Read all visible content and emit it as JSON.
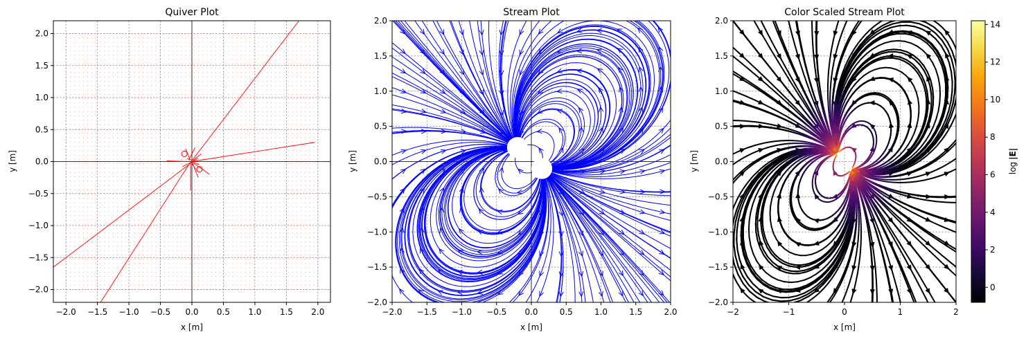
{
  "chart_data": [
    {
      "type": "quiver",
      "title": "Quiver Plot",
      "xlabel": "x [m]",
      "ylabel": "y [m]",
      "xlim": [
        -2.2,
        2.2
      ],
      "ylim": [
        -2.2,
        2.2
      ],
      "xticks": [
        "-2.0",
        "-1.5",
        "-1.0",
        "-0.5",
        "0.0",
        "0.5",
        "1.0",
        "1.5",
        "2.0"
      ],
      "yticks": [
        "-2.0",
        "-1.5",
        "-1.0",
        "-0.5",
        "0.0",
        "0.5",
        "1.0",
        "1.5",
        "2.0"
      ],
      "grid": true,
      "color": "#ff0000",
      "sources": [
        {
          "x": -0.12,
          "y": 0.12,
          "charge": "negative"
        },
        {
          "x": 0.12,
          "y": -0.12,
          "charge": "positive"
        }
      ],
      "grid_range": [
        -2.0,
        2.0
      ],
      "large_arrows": [
        {
          "x0": -0.05,
          "y0": -0.05,
          "x1": 1.7,
          "y1": 2.2
        },
        {
          "x0": -0.05,
          "y0": -0.05,
          "x1": -2.2,
          "y1": -1.65
        },
        {
          "x0": -0.05,
          "y0": -0.05,
          "x1": -1.45,
          "y1": -2.2
        },
        {
          "x0": 0.0,
          "y0": 0.0,
          "x1": 1.95,
          "y1": 0.3
        }
      ]
    },
    {
      "type": "streamplot",
      "title": "Stream Plot",
      "xlabel": "x [m]",
      "ylabel": "y [m]",
      "xlim": [
        -2.0,
        2.0
      ],
      "ylim": [
        -2.0,
        2.0
      ],
      "xticks": [
        "-2.0",
        "-1.5",
        "-1.0",
        "-0.5",
        "0.0",
        "0.5",
        "1.0",
        "1.5",
        "2.0"
      ],
      "yticks": [
        "-2.0",
        "-1.5",
        "-1.0",
        "-0.5",
        "0.0",
        "0.5",
        "1.0",
        "1.5",
        "2.0"
      ],
      "grid": true,
      "color": "#0000ff",
      "sources": [
        {
          "x": -0.2,
          "y": 0.2,
          "charge": "negative",
          "hole_radius": 0.15
        },
        {
          "x": 0.15,
          "y": -0.1,
          "charge": "positive",
          "hole_radius": 0.15
        }
      ]
    },
    {
      "type": "streamplot",
      "title": "Color Scaled Stream Plot",
      "xlabel": "x [m]",
      "ylabel": "y [m]",
      "xlim": [
        -2,
        2
      ],
      "ylim": [
        -2,
        2
      ],
      "xticks": [
        "-2",
        "-1",
        "0",
        "1",
        "2"
      ],
      "yticks": [
        "-2.0",
        "-1.5",
        "-1.0",
        "-0.5",
        "0.0",
        "0.5",
        "1.0",
        "1.5",
        "2.0"
      ],
      "grid": true,
      "colormap": "inferno",
      "colorbar": {
        "label": "log|E|",
        "label_text": "log",
        "label_abs": "|E|",
        "range": [
          -0.8,
          14.2
        ],
        "ticks": [
          "0",
          "2",
          "4",
          "6",
          "8",
          "10",
          "12",
          "14"
        ],
        "tick_values": [
          0,
          2,
          4,
          6,
          8,
          10,
          12,
          14
        ]
      },
      "sources": [
        {
          "x": -0.12,
          "y": 0.12,
          "charge": "negative"
        },
        {
          "x": 0.12,
          "y": -0.12,
          "charge": "positive"
        }
      ]
    }
  ]
}
